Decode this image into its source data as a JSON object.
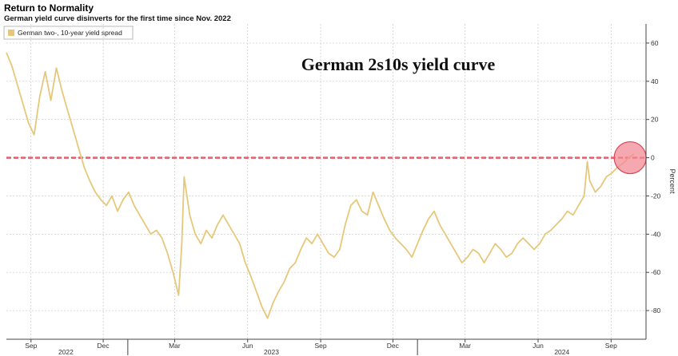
{
  "chart_data": {
    "type": "line",
    "title": "Return to Normality",
    "subtitle": "German yield curve disinverts for the first time since Nov. 2022",
    "ylabel": "Percent",
    "ylim": [
      -95,
      70
    ],
    "yticks": [
      60,
      40,
      20,
      0,
      -20,
      -40,
      -60,
      -80
    ],
    "xlim": [
      "2022-08-01",
      "2024-10-15"
    ],
    "legend": {
      "placement": "top-left"
    },
    "annotation": "German 2s10s yield curve",
    "grid": true,
    "x_month_labels": [
      {
        "label": "Sep",
        "date": "2022-09-01"
      },
      {
        "label": "Dec",
        "date": "2022-12-01"
      },
      {
        "label": "Mar",
        "date": "2023-03-01"
      },
      {
        "label": "Jun",
        "date": "2023-06-01"
      },
      {
        "label": "Sep",
        "date": "2023-09-01"
      },
      {
        "label": "Dec",
        "date": "2023-12-01"
      },
      {
        "label": "Mar",
        "date": "2024-03-01"
      },
      {
        "label": "Jun",
        "date": "2024-06-01"
      },
      {
        "label": "Sep",
        "date": "2024-09-01"
      }
    ],
    "x_year_labels": [
      {
        "label": "2022",
        "date": "2022-10-15"
      },
      {
        "label": "2023",
        "date": "2023-07-01"
      },
      {
        "label": "2024",
        "date": "2024-07-01"
      }
    ],
    "year_boundaries": [
      "2023-01-01",
      "2024-01-01"
    ],
    "reference_line": {
      "y": 0,
      "color": "#e35d6a"
    },
    "highlight": {
      "date": "2024-09-25",
      "y": 0
    },
    "series": [
      {
        "name": "German two-, 10-year yield spread",
        "color": "#e6c87a",
        "points": [
          [
            "2022-08-01",
            55
          ],
          [
            "2022-08-08",
            48
          ],
          [
            "2022-08-15",
            38
          ],
          [
            "2022-08-22",
            28
          ],
          [
            "2022-08-29",
            18
          ],
          [
            "2022-09-05",
            12
          ],
          [
            "2022-09-12",
            32
          ],
          [
            "2022-09-19",
            45
          ],
          [
            "2022-09-26",
            30
          ],
          [
            "2022-10-03",
            47
          ],
          [
            "2022-10-10",
            35
          ],
          [
            "2022-10-17",
            25
          ],
          [
            "2022-10-24",
            15
          ],
          [
            "2022-10-31",
            5
          ],
          [
            "2022-11-07",
            -5
          ],
          [
            "2022-11-14",
            -12
          ],
          [
            "2022-11-21",
            -18
          ],
          [
            "2022-11-28",
            -22
          ],
          [
            "2022-12-05",
            -25
          ],
          [
            "2022-12-12",
            -20
          ],
          [
            "2022-12-19",
            -28
          ],
          [
            "2022-12-26",
            -22
          ],
          [
            "2023-01-02",
            -18
          ],
          [
            "2023-01-09",
            -25
          ],
          [
            "2023-01-16",
            -30
          ],
          [
            "2023-01-23",
            -35
          ],
          [
            "2023-01-30",
            -40
          ],
          [
            "2023-02-06",
            -38
          ],
          [
            "2023-02-13",
            -42
          ],
          [
            "2023-02-20",
            -50
          ],
          [
            "2023-02-27",
            -60
          ],
          [
            "2023-03-06",
            -72
          ],
          [
            "2023-03-10",
            -45
          ],
          [
            "2023-03-13",
            -10
          ],
          [
            "2023-03-20",
            -30
          ],
          [
            "2023-03-27",
            -40
          ],
          [
            "2023-04-03",
            -45
          ],
          [
            "2023-04-10",
            -38
          ],
          [
            "2023-04-17",
            -42
          ],
          [
            "2023-04-24",
            -35
          ],
          [
            "2023-05-01",
            -30
          ],
          [
            "2023-05-08",
            -35
          ],
          [
            "2023-05-15",
            -40
          ],
          [
            "2023-05-22",
            -45
          ],
          [
            "2023-05-29",
            -55
          ],
          [
            "2023-06-05",
            -62
          ],
          [
            "2023-06-12",
            -70
          ],
          [
            "2023-06-19",
            -78
          ],
          [
            "2023-06-26",
            -84
          ],
          [
            "2023-07-03",
            -76
          ],
          [
            "2023-07-10",
            -70
          ],
          [
            "2023-07-17",
            -65
          ],
          [
            "2023-07-24",
            -58
          ],
          [
            "2023-07-31",
            -55
          ],
          [
            "2023-08-07",
            -48
          ],
          [
            "2023-08-14",
            -42
          ],
          [
            "2023-08-21",
            -45
          ],
          [
            "2023-08-28",
            -40
          ],
          [
            "2023-09-04",
            -45
          ],
          [
            "2023-09-11",
            -50
          ],
          [
            "2023-09-18",
            -52
          ],
          [
            "2023-09-25",
            -48
          ],
          [
            "2023-10-02",
            -35
          ],
          [
            "2023-10-09",
            -25
          ],
          [
            "2023-10-16",
            -22
          ],
          [
            "2023-10-23",
            -28
          ],
          [
            "2023-10-30",
            -30
          ],
          [
            "2023-11-06",
            -18
          ],
          [
            "2023-11-13",
            -25
          ],
          [
            "2023-11-20",
            -32
          ],
          [
            "2023-11-27",
            -38
          ],
          [
            "2023-12-04",
            -42
          ],
          [
            "2023-12-11",
            -45
          ],
          [
            "2023-12-18",
            -48
          ],
          [
            "2023-12-25",
            -52
          ],
          [
            "2024-01-01",
            -45
          ],
          [
            "2024-01-08",
            -38
          ],
          [
            "2024-01-15",
            -32
          ],
          [
            "2024-01-22",
            -28
          ],
          [
            "2024-01-29",
            -35
          ],
          [
            "2024-02-05",
            -40
          ],
          [
            "2024-02-12",
            -45
          ],
          [
            "2024-02-19",
            -50
          ],
          [
            "2024-02-26",
            -55
          ],
          [
            "2024-03-04",
            -52
          ],
          [
            "2024-03-11",
            -48
          ],
          [
            "2024-03-18",
            -50
          ],
          [
            "2024-03-25",
            -55
          ],
          [
            "2024-04-01",
            -50
          ],
          [
            "2024-04-08",
            -45
          ],
          [
            "2024-04-15",
            -48
          ],
          [
            "2024-04-22",
            -52
          ],
          [
            "2024-04-29",
            -50
          ],
          [
            "2024-05-06",
            -45
          ],
          [
            "2024-05-13",
            -42
          ],
          [
            "2024-05-20",
            -45
          ],
          [
            "2024-05-27",
            -48
          ],
          [
            "2024-06-03",
            -45
          ],
          [
            "2024-06-10",
            -40
          ],
          [
            "2024-06-17",
            -38
          ],
          [
            "2024-06-24",
            -35
          ],
          [
            "2024-07-01",
            -32
          ],
          [
            "2024-07-08",
            -28
          ],
          [
            "2024-07-15",
            -30
          ],
          [
            "2024-07-22",
            -25
          ],
          [
            "2024-07-29",
            -20
          ],
          [
            "2024-08-02",
            -2
          ],
          [
            "2024-08-05",
            -12
          ],
          [
            "2024-08-12",
            -18
          ],
          [
            "2024-08-19",
            -15
          ],
          [
            "2024-08-26",
            -10
          ],
          [
            "2024-09-02",
            -8
          ],
          [
            "2024-09-09",
            -5
          ],
          [
            "2024-09-16",
            -3
          ],
          [
            "2024-09-23",
            0
          ],
          [
            "2024-09-30",
            2
          ]
        ]
      }
    ]
  }
}
